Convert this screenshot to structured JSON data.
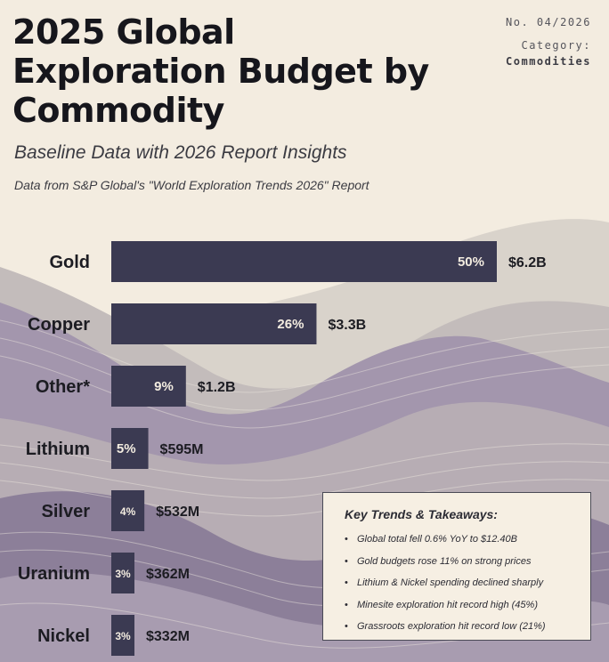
{
  "header": {
    "title": "2025 Global Exploration Budget by Commodity",
    "issue_number": "No. 04/2026",
    "category_label": "Category:",
    "category_value": "Commodities",
    "subtitle": "Baseline Data with 2026 Report Insights",
    "source": "Data from S&P Global's \"World Exploration Trends 2026\" Report"
  },
  "chart_data": {
    "type": "bar",
    "orientation": "horizontal",
    "categories": [
      "Gold",
      "Copper",
      "Other*",
      "Lithium",
      "Silver",
      "Uranium",
      "Nickel"
    ],
    "values_usd_millions": [
      6200,
      3300,
      1200,
      595,
      532,
      362,
      332
    ],
    "value_labels": [
      "$6.2B",
      "$3.3B",
      "$1.2B",
      "$595M",
      "$532M",
      "$362M",
      "$332M"
    ],
    "share_labels": [
      "50%",
      "26%",
      "9%",
      "5%",
      "4%",
      "3%",
      "3%"
    ],
    "grid": false
  },
  "takeaways": {
    "heading": "Key Trends & Takeaways:",
    "bullet": "•",
    "items": [
      "Global total fell 0.6% YoY to $12.40B",
      "Gold budgets rose 11% on strong prices",
      "Lithium & Nickel spending declined sharply",
      "Minesite exploration hit record high (45%)",
      "Grassroots exploration hit record low (21%)"
    ]
  },
  "colors": {
    "background": "#f3ece0",
    "bar": "#3b3a52",
    "bar_text": "#f3ece0",
    "mountain_light": "#c7c0b8",
    "mountain_mid": "#9f92a8",
    "mountain_dark": "#8a7c96"
  }
}
